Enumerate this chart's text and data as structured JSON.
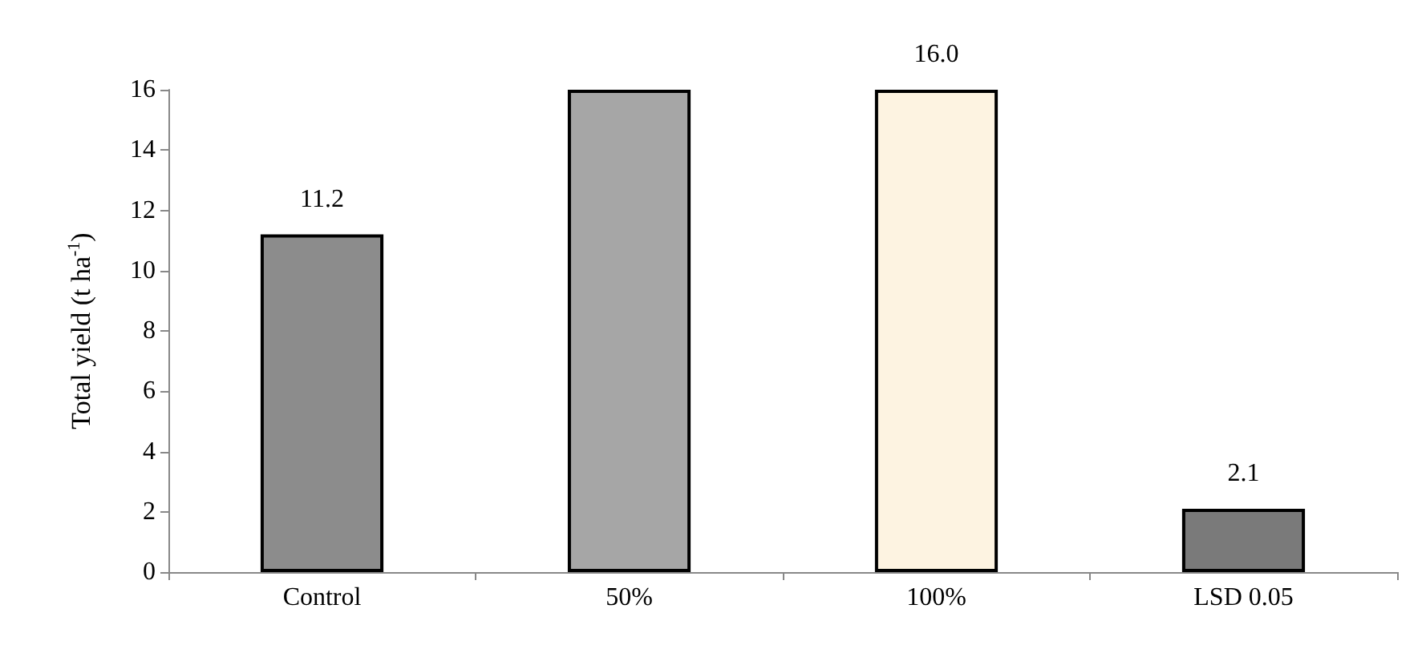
{
  "chart_data": {
    "type": "bar",
    "ylabel": "Total yield (t ha$^{-1}$)",
    "categories": [
      "Control",
      "50%",
      "100%",
      "LSD 0.05"
    ],
    "values": [
      11.2,
      16,
      16.0,
      2.1
    ],
    "value_labels": [
      "11.2",
      null,
      "16.0",
      "2.1"
    ],
    "colors": [
      "#8c8c8c",
      "#a6a6a6",
      "#fdf3e1",
      "#7a7a7a"
    ],
    "ylim": [
      0,
      16
    ],
    "yticks": [
      0,
      2,
      4,
      6,
      8,
      10,
      12,
      14,
      16
    ],
    "grid": false
  }
}
